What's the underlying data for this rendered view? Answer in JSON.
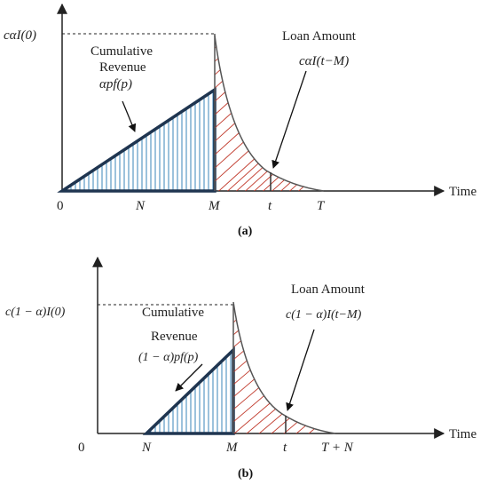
{
  "panel_a": {
    "y_label": "cαI(0)",
    "x_axis_label": "Time",
    "ticks": {
      "zero": "0",
      "n": "N",
      "m": "M",
      "t": "t",
      "end": "T"
    },
    "revenue_title_line1": "Cumulative",
    "revenue_title_line2": "Revenue",
    "revenue_formula": "αpf(p)",
    "loan_title": "Loan Amount",
    "loan_formula": "cαI(t−M)",
    "caption": "(a)"
  },
  "panel_b": {
    "y_label": "c(1 − α)I(0)",
    "x_axis_label": "Time",
    "ticks": {
      "zero": "0",
      "n": "N",
      "m": "M",
      "t": "t",
      "end": "T + N"
    },
    "revenue_title_line1": "Cumulative",
    "revenue_title_line2": "Revenue",
    "revenue_formula": "(1 − α)pf(p)",
    "loan_title": "Loan Amount",
    "loan_formula": "c(1 − α)I(t−M)",
    "caption": "(b)"
  },
  "colors": {
    "axis": "#222222",
    "triangle_stroke": "#1f3550",
    "triangle_hatch": "#3a86b8",
    "loan_hatch": "#c0392b",
    "curve": "#555555"
  }
}
